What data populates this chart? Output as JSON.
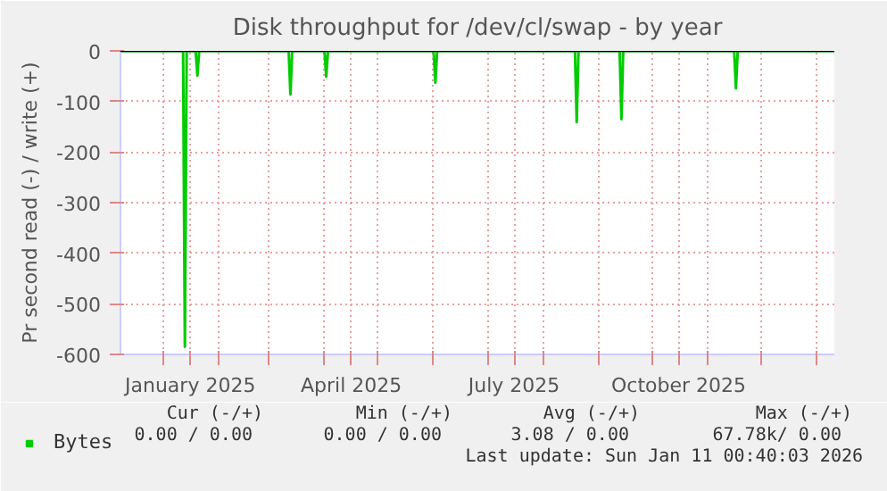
{
  "chart_data": {
    "type": "line",
    "title": "Disk throughput for /dev/cl/swap - by year",
    "ylabel": "Pr second read (-) / write (+)",
    "x": [
      "2024-12-08",
      "2025-01-12",
      "2025-01-13",
      "2025-01-14",
      "2025-01-19",
      "2025-01-20",
      "2025-01-21",
      "2025-03-12",
      "2025-03-13",
      "2025-03-14",
      "2025-04-01",
      "2025-04-02",
      "2025-04-03",
      "2025-06-01",
      "2025-06-02",
      "2025-06-03",
      "2025-08-19",
      "2025-08-20",
      "2025-08-21",
      "2025-09-13",
      "2025-09-14",
      "2025-09-15",
      "2025-11-16",
      "2025-11-17",
      "2025-11-18",
      "2026-01-11"
    ],
    "series": [
      {
        "name": "Bytes",
        "color": "#00cc00",
        "values": [
          0,
          0,
          -585,
          0,
          0,
          -49,
          0,
          0,
          -86,
          0,
          0,
          -51,
          0,
          0,
          -63,
          0,
          0,
          -141,
          0,
          0,
          -135,
          0,
          0,
          -74,
          0,
          0
        ]
      }
    ],
    "xlim": [
      "2024-12-08",
      "2026-01-11"
    ],
    "xticks": [
      {
        "value": "2025-01-01",
        "label": null
      },
      {
        "value": "2025-01-16",
        "label": "January 2025"
      },
      {
        "value": "2025-02-01",
        "label": null
      },
      {
        "value": "2025-03-01",
        "label": null
      },
      {
        "value": "2025-04-01",
        "label": null
      },
      {
        "value": "2025-04-16",
        "label": "April 2025"
      },
      {
        "value": "2025-05-01",
        "label": null
      },
      {
        "value": "2025-06-01",
        "label": null
      },
      {
        "value": "2025-07-01",
        "label": null
      },
      {
        "value": "2025-07-16",
        "label": "July 2025"
      },
      {
        "value": "2025-08-01",
        "label": null
      },
      {
        "value": "2025-09-01",
        "label": null
      },
      {
        "value": "2025-10-01",
        "label": null
      },
      {
        "value": "2025-10-16",
        "label": "October 2025"
      },
      {
        "value": "2025-11-01",
        "label": null
      },
      {
        "value": "2025-12-01",
        "label": null
      },
      {
        "value": "2026-01-01",
        "label": null
      }
    ],
    "ylim": [
      -600,
      0
    ],
    "yticks": [
      -600,
      -500,
      -400,
      -300,
      -200,
      -100,
      0
    ],
    "ref_lines": [
      {
        "axis": "y",
        "value": 0,
        "color": "#000000"
      }
    ],
    "grid": true,
    "legend": "bottom",
    "annotations": [
      "Cur (-/+)",
      "Min (-/+)",
      "Avg (-/+)",
      "Max (-/+)",
      "0.00 /  0.00",
      "0.00 /  0.00",
      "3.08 /  0.00",
      "67.78k/  0.00",
      "Last update: Sun Jan 11 00:40:03 2026"
    ]
  }
}
